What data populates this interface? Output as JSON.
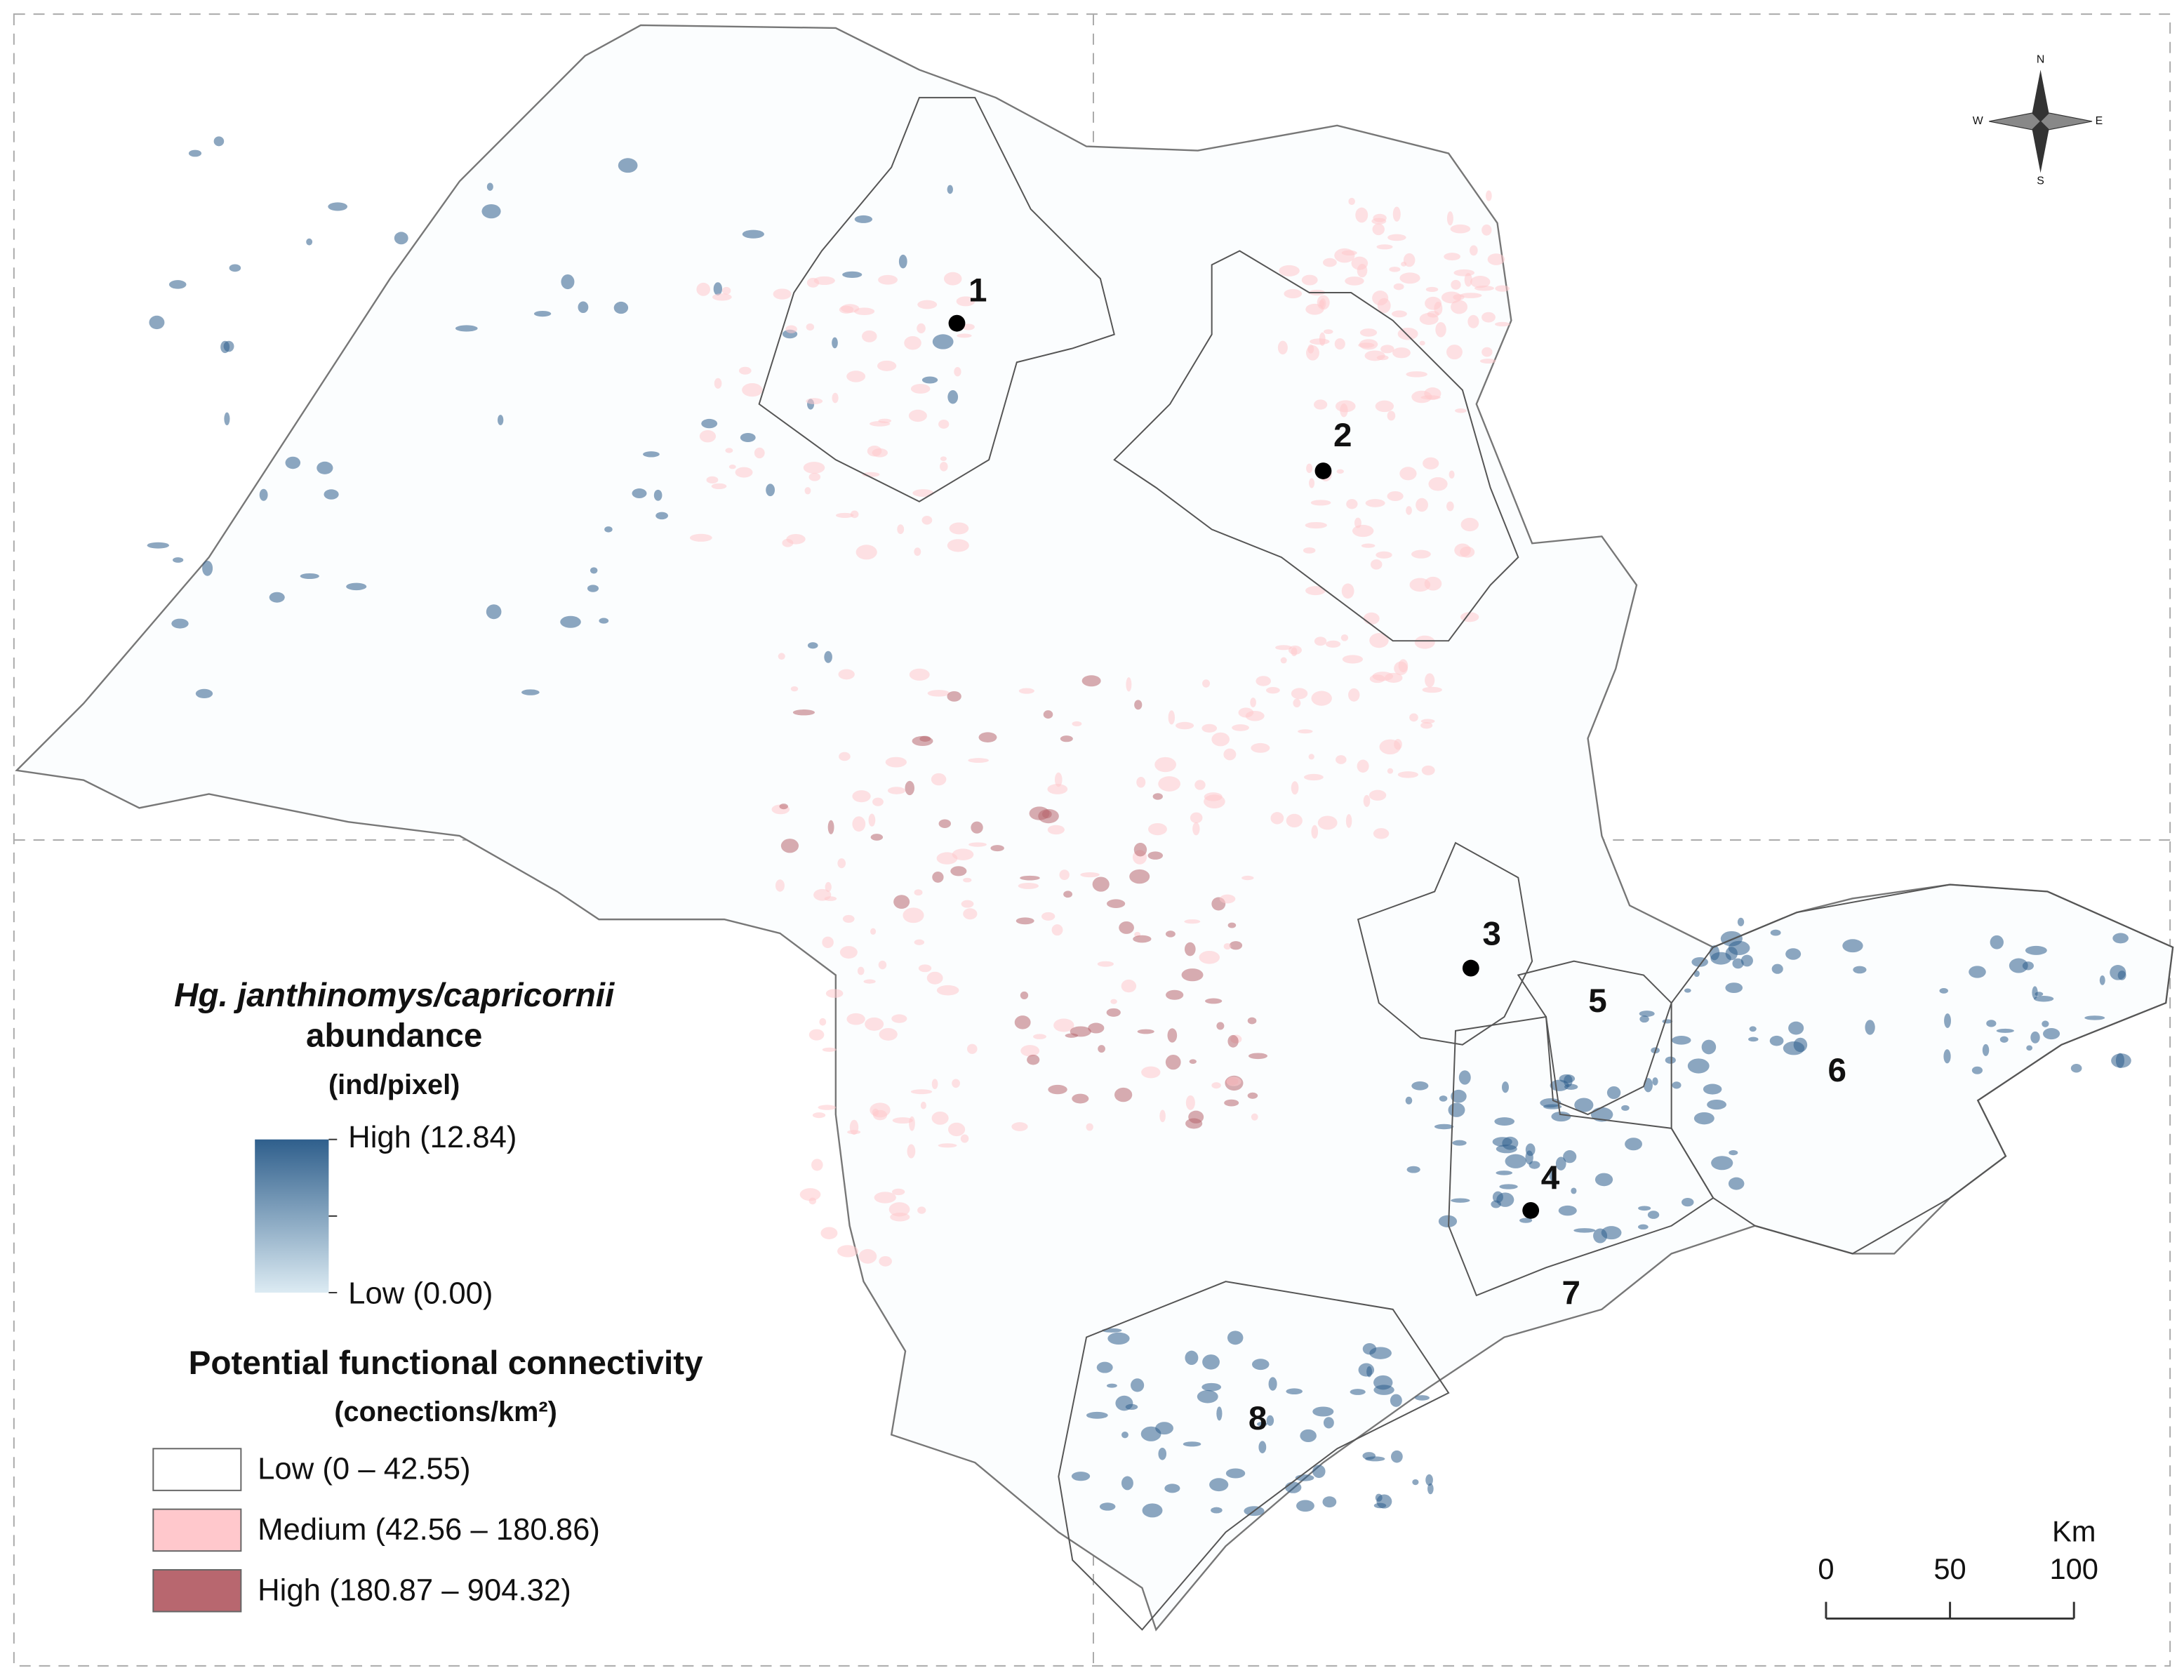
{
  "compass": {
    "n": "N",
    "s": "S",
    "e": "E",
    "w": "W"
  },
  "regions": [
    {
      "label": "1"
    },
    {
      "label": "2"
    },
    {
      "label": "3"
    },
    {
      "label": "4"
    },
    {
      "label": "5"
    },
    {
      "label": "6"
    },
    {
      "label": "7"
    },
    {
      "label": "8"
    }
  ],
  "legend": {
    "abundance": {
      "title_species": "Hg. janthinomys/capricornii",
      "title_rest": "abundance",
      "unit": "(ind/pixel)",
      "high": "High (12.84)",
      "low": "Low (0.00)",
      "color_high": "#2f5f8c",
      "color_low": "#dcebf3"
    },
    "connectivity": {
      "title": "Potential functional connectivity",
      "unit": "(conections/km²)",
      "classes": [
        {
          "label": "Low (0 – 42.55)",
          "color": "#ffffff"
        },
        {
          "label": "Medium (42.56 – 180.86)",
          "color": "#ffc8cc"
        },
        {
          "label": "High (180.87 – 904.32)",
          "color": "#b8676f"
        }
      ]
    }
  },
  "scale_bar": {
    "unit": "Km",
    "ticks": [
      0,
      50,
      100
    ]
  }
}
